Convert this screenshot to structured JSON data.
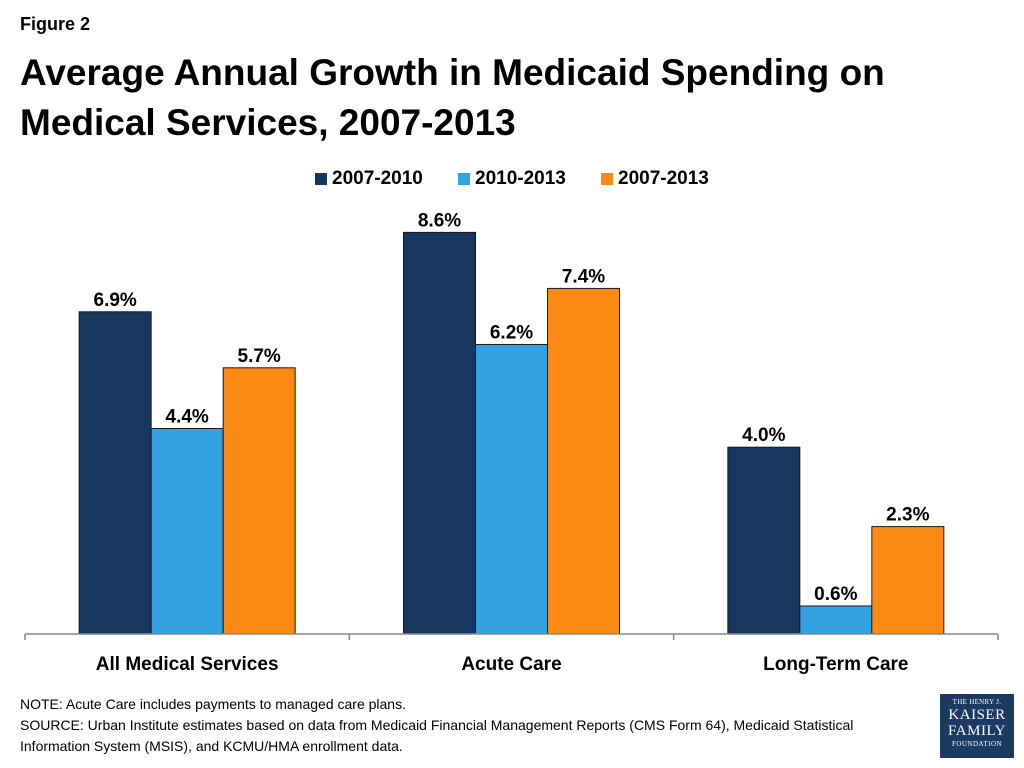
{
  "figure_label": "Figure 2",
  "title": "Average Annual Growth in Medicaid Spending on Medical Services, 2007-2013",
  "colors": {
    "series_2007_2010": "#17375e",
    "series_2010_2013": "#33a2e0",
    "series_2007_2013": "#fb8a14",
    "axis": "#888888"
  },
  "chart_data": {
    "type": "bar",
    "categories": [
      "All Medical Services",
      "Acute Care",
      "Long-Term Care"
    ],
    "series": [
      {
        "name": "2007-2010",
        "values": [
          6.9,
          8.6,
          4.0
        ],
        "labels": [
          "6.9%",
          "8.6%",
          "4.0%"
        ]
      },
      {
        "name": "2010-2013",
        "values": [
          4.4,
          6.2,
          0.6
        ],
        "labels": [
          "4.4%",
          "6.2%",
          "0.6%"
        ]
      },
      {
        "name": "2007-2013",
        "values": [
          5.7,
          7.4,
          2.3
        ],
        "labels": [
          "5.7%",
          "7.4%",
          "2.3%"
        ]
      }
    ],
    "legend_position": "top-center",
    "grid": false,
    "ylim": [
      0,
      9
    ]
  },
  "note": "NOTE: Acute Care includes payments to managed care plans.",
  "source": "SOURCE: Urban Institute estimates based on data from Medicaid Financial Management Reports (CMS Form 64), Medicaid Statistical Information System (MSIS), and KCMU/HMA enrollment data.",
  "logo": {
    "line1": "THE HENRY J.",
    "line2": "KAISER",
    "line3": "FAMILY",
    "line4": "FOUNDATION"
  }
}
